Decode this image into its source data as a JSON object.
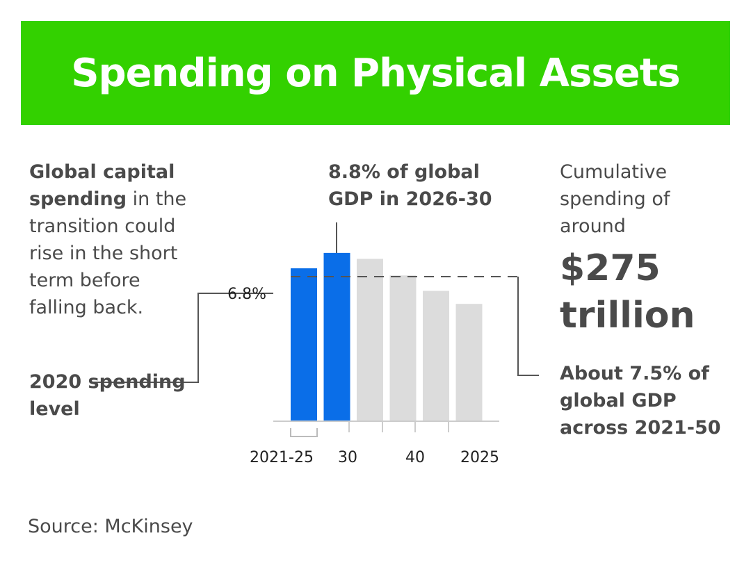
{
  "title": "Spending on Physical Assets",
  "left_note": {
    "bold": "Global capital spending",
    "text": " in the transition could rise in the short term before falling back."
  },
  "baseline_note": "2020 spending level",
  "right_note": {
    "intro": "Cumulative spending of around",
    "amount": "$275 trillion",
    "detail": "About 7.5% of global GDP across 2021-50"
  },
  "source": "Source: McKinsey",
  "chart_data": {
    "type": "bar",
    "categories": [
      "2021-25",
      "30",
      null,
      "40",
      null,
      "2025"
    ],
    "values": [
      7.5,
      8.8,
      8.3,
      6.9,
      5.6,
      4.5
    ],
    "colors": [
      "#0a6ee8",
      "#0a6ee8",
      "#dcdcdc",
      "#dcdcdc",
      "#dcdcdc",
      "#dcdcdc"
    ],
    "ylim": [
      -5.4,
      10.2
    ],
    "reference_line": {
      "value": 6.8,
      "label": "6.8%"
    },
    "annotation": "8.8% of global GDP in 2026-30"
  }
}
